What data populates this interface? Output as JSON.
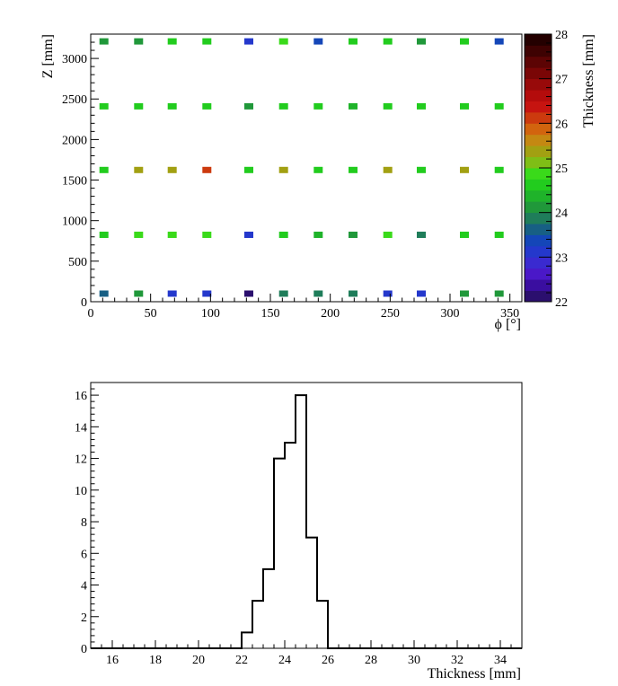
{
  "chart_data": [
    {
      "type": "heatmap",
      "xlabel": "ϕ [°]",
      "ylabel": "Z [mm]",
      "zlabel": "Thickness [mm]",
      "xlim": [
        0,
        360
      ],
      "ylim": [
        0,
        3300
      ],
      "zlim": [
        22,
        28
      ],
      "x_ticks": [
        0,
        50,
        100,
        150,
        200,
        250,
        300,
        350
      ],
      "y_ticks": [
        0,
        500,
        1000,
        1500,
        2000,
        2500,
        3000
      ],
      "z_ticks": [
        22,
        23,
        24,
        25,
        26,
        27,
        28
      ],
      "x": [
        11,
        40,
        68,
        97,
        132,
        161,
        190,
        219,
        248,
        276,
        312,
        341
      ],
      "y": [
        100,
        825,
        1625,
        2410,
        3210
      ],
      "z": [
        [
          23.6,
          24.2,
          23.0,
          23.2,
          22.2,
          23.8,
          23.8,
          23.8,
          23.2,
          23.2,
          24.2,
          24.2
        ],
        [
          24.7,
          24.9,
          24.8,
          24.9,
          23.2,
          24.7,
          24.4,
          24.2,
          24.9,
          23.8,
          24.7,
          24.7
        ],
        [
          24.6,
          25.3,
          25.4,
          26.2,
          24.7,
          25.3,
          24.7,
          24.6,
          25.3,
          24.7,
          25.3,
          24.6
        ],
        [
          24.6,
          24.6,
          24.6,
          24.6,
          24.2,
          24.7,
          24.6,
          24.4,
          24.6,
          24.6,
          24.7,
          24.6
        ],
        [
          24.2,
          24.2,
          24.6,
          24.6,
          23.2,
          24.9,
          23.4,
          24.6,
          24.6,
          24.2,
          24.7,
          23.4
        ]
      ],
      "palette": [
        "#2b0f6e",
        "#3a0ea0",
        "#4a18c8",
        "#3a2ad0",
        "#2438cc",
        "#1446b8",
        "#175f84",
        "#1f7d5a",
        "#20983a",
        "#1fb32a",
        "#22cc1e",
        "#3ada1a",
        "#7fbe16",
        "#a2a012",
        "#c48812",
        "#d2640e",
        "#cc3a0e",
        "#c61410",
        "#b40c0c",
        "#980a0a",
        "#7a0606",
        "#5c0404",
        "#3e0202",
        "#240000"
      ]
    },
    {
      "type": "bar",
      "style": "step-histogram",
      "xlabel": "Thickness [mm]",
      "ylabel": "",
      "xlim": [
        15,
        35
      ],
      "ylim": [
        0,
        16.8
      ],
      "x_ticks": [
        16,
        18,
        20,
        22,
        24,
        26,
        28,
        30,
        32,
        34
      ],
      "y_ticks": [
        0,
        2,
        4,
        6,
        8,
        10,
        12,
        14,
        16
      ],
      "bin_width": 0.5,
      "bin_starts": [
        22.0,
        22.5,
        23.0,
        23.5,
        24.0,
        24.5,
        25.0,
        25.5
      ],
      "values": [
        1,
        3,
        5,
        12,
        13,
        16,
        7,
        3
      ]
    }
  ]
}
